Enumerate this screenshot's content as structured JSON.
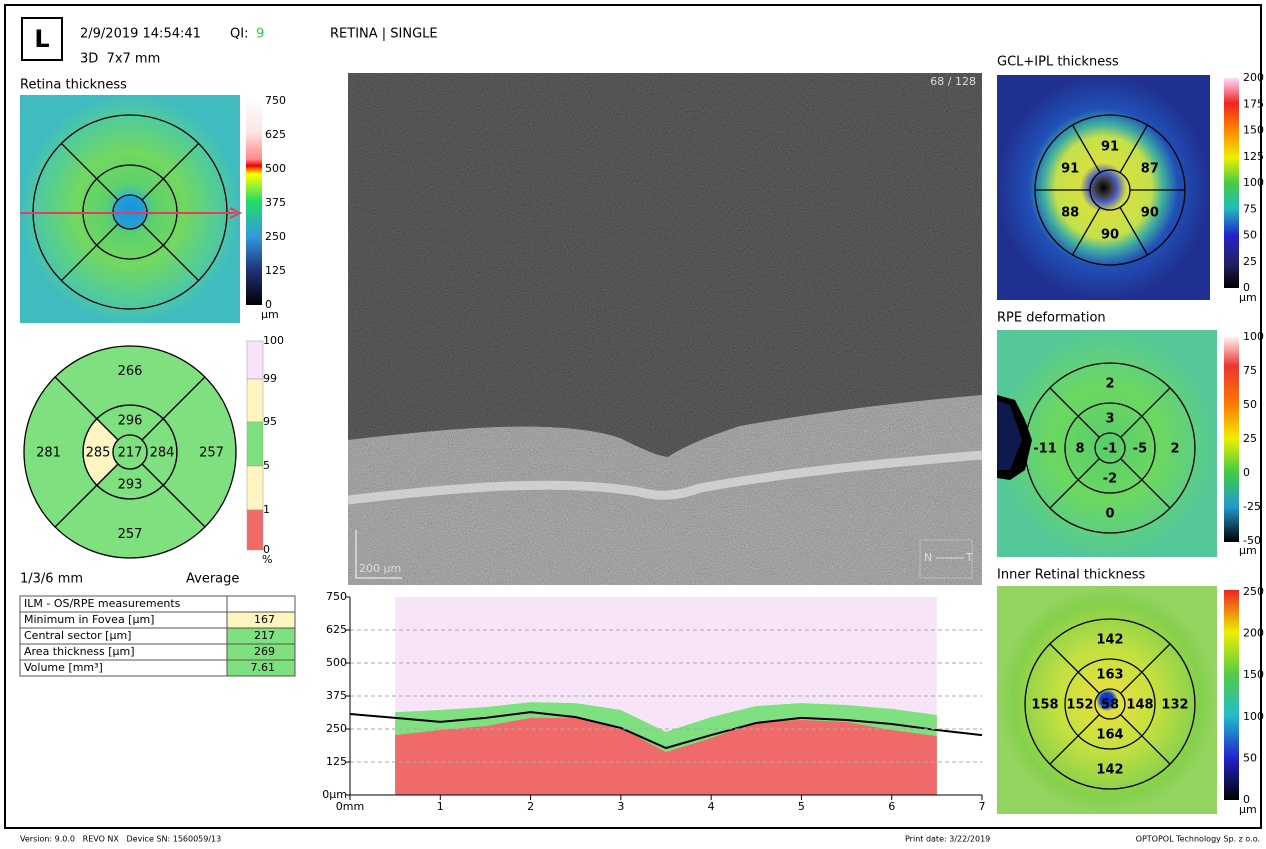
{
  "header": {
    "eye": "L",
    "datetime": "2/9/2019 14:54:41",
    "qi_label": "QI:",
    "qi": 9,
    "scan": "3D  7x7 mm",
    "mode": "RETINA | SINGLE"
  },
  "retina_map": {
    "title": "Retina thickness",
    "scale": [
      750,
      625,
      500,
      375,
      250,
      125,
      0
    ],
    "unit": "µm"
  },
  "retina_sectors": {
    "center": 217,
    "inner": [
      296,
      284,
      293,
      285
    ],
    "outer": [
      266,
      257,
      257,
      281
    ],
    "scale": [
      100,
      99,
      95,
      5,
      1,
      0
    ],
    "unit": "%",
    "zones": "1/3/6 mm",
    "mode": "Average"
  },
  "table": {
    "header": "ILM - OS/RPE measurements",
    "rows": [
      [
        "Minimum in Fovea [µm]",
        167
      ],
      [
        "Central sector [µm]",
        217
      ],
      [
        "Area thickness [µm]",
        269
      ],
      [
        "Volume [mm³]",
        7.61
      ]
    ]
  },
  "bscan": {
    "frame": "68 / 128",
    "scale_bar": "200 µm",
    "left": "N",
    "right": "T"
  },
  "chart_data": {
    "type": "area",
    "x": [
      0,
      0.5,
      1,
      1.5,
      2,
      2.5,
      3,
      3.5,
      4,
      4.5,
      5,
      5.5,
      6,
      6.5,
      7
    ],
    "series": [
      {
        "style": "area",
        "color": "#f8e4f8",
        "values": [
          null,
          750,
          750,
          750,
          750,
          750,
          750,
          750,
          750,
          750,
          750,
          750,
          750,
          750,
          null
        ]
      },
      {
        "style": "area",
        "color": "#7ee07e",
        "values": [
          null,
          314,
          322,
          333,
          352,
          348,
          322,
          239,
          295,
          337,
          348,
          341,
          326,
          303,
          null
        ]
      },
      {
        "style": "area",
        "color": "#f06a6a",
        "values": [
          null,
          227,
          246,
          261,
          292,
          292,
          254,
          163,
          216,
          277,
          284,
          277,
          246,
          223,
          null
        ]
      },
      {
        "style": "line",
        "color": "#000000",
        "values": [
          307,
          292,
          277,
          292,
          314,
          295,
          254,
          178,
          227,
          273,
          292,
          284,
          269,
          246,
          227
        ]
      }
    ],
    "xlim": [
      0,
      7
    ],
    "ylim": [
      0,
      750
    ],
    "xticks": [
      {
        "value": 0,
        "label": "0mm"
      },
      1,
      2,
      3,
      4,
      5,
      6,
      7
    ],
    "yticks": [
      {
        "value": 0,
        "label": "0µm"
      },
      125,
      250,
      375,
      500,
      625,
      750
    ],
    "grid": true
  },
  "gcl": {
    "title": "GCL+IPL thickness",
    "sectors": [
      91,
      87,
      90,
      90,
      88,
      91
    ],
    "scale": [
      200,
      175,
      150,
      125,
      100,
      75,
      50,
      25,
      0
    ],
    "unit": "µm"
  },
  "rpe": {
    "title": "RPE deformation",
    "center": -1,
    "inner": [
      3,
      -5,
      -2,
      8
    ],
    "outer": [
      2,
      2,
      0,
      -11
    ],
    "scale": [
      100,
      75,
      50,
      25,
      0,
      -25,
      -50
    ],
    "unit": "µm"
  },
  "inner_retinal": {
    "title": "Inner Retinal thickness",
    "center": 58,
    "inner": [
      163,
      148,
      164,
      152
    ],
    "outer": [
      142,
      132,
      142,
      158
    ],
    "scale": [
      250,
      200,
      150,
      100,
      50,
      0
    ],
    "unit": "µm"
  },
  "footer": {
    "version": "Version: 9.0.0   REVO NX   Device SN: 1560059/13",
    "print_date": "Print date: 3/22/2019",
    "company": "OPTOPOL Technology Sp. z o.o."
  }
}
